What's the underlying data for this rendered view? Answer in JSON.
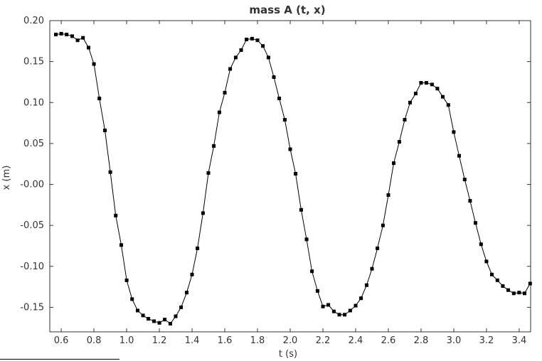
{
  "chart_data": {
    "type": "line",
    "title": "mass A (t, x)",
    "xlabel": "t (s)",
    "ylabel": "x (m)",
    "xlim": [
      0.53,
      3.47
    ],
    "ylim": [
      -0.18,
      0.2
    ],
    "x_ticks": [
      0.6,
      0.8,
      1.0,
      1.2,
      1.4,
      1.6,
      1.8,
      2.0,
      2.2,
      2.4,
      2.6,
      2.8,
      3.0,
      3.2,
      3.4
    ],
    "x_tick_labels": [
      "0.6",
      "0.8",
      "1.0",
      "1.2",
      "1.4",
      "1.6",
      "1.8",
      "2.0",
      "2.2",
      "2.4",
      "2.6",
      "2.8",
      "3.0",
      "3.2",
      "3.4"
    ],
    "y_ticks": [
      0.2,
      0.15,
      0.1,
      0.05,
      0.0,
      -0.05,
      -0.1,
      -0.15
    ],
    "y_tick_labels": [
      "0.20",
      "0.15",
      "0.10",
      "0.05",
      "-0.00",
      "-0.05",
      "-0.10",
      "-0.15"
    ],
    "grid": false,
    "colors": {
      "line": "#000000",
      "marker": "#000000",
      "axis": "#333333"
    },
    "series": [
      {
        "marker": "square",
        "x": [
          0.567,
          0.6,
          0.633,
          0.667,
          0.7,
          0.733,
          0.767,
          0.8,
          0.833,
          0.867,
          0.9,
          0.933,
          0.967,
          1.0,
          1.033,
          1.067,
          1.1,
          1.133,
          1.167,
          1.2,
          1.233,
          1.267,
          1.3,
          1.333,
          1.367,
          1.4,
          1.433,
          1.467,
          1.5,
          1.533,
          1.567,
          1.6,
          1.633,
          1.667,
          1.7,
          1.733,
          1.767,
          1.8,
          1.833,
          1.867,
          1.9,
          1.933,
          1.967,
          2.0,
          2.033,
          2.067,
          2.1,
          2.133,
          2.167,
          2.2,
          2.233,
          2.267,
          2.3,
          2.333,
          2.367,
          2.4,
          2.433,
          2.467,
          2.5,
          2.533,
          2.567,
          2.6,
          2.633,
          2.667,
          2.7,
          2.733,
          2.767,
          2.8,
          2.833,
          2.867,
          2.9,
          2.933,
          2.967,
          3.0,
          3.033,
          3.067,
          3.1,
          3.133,
          3.167,
          3.2,
          3.233,
          3.267,
          3.3,
          3.333,
          3.367,
          3.4,
          3.433,
          3.467
        ],
        "y": [
          0.183,
          0.184,
          0.183,
          0.181,
          0.176,
          0.179,
          0.167,
          0.147,
          0.105,
          0.066,
          0.015,
          -0.038,
          -0.074,
          -0.117,
          -0.14,
          -0.154,
          -0.16,
          -0.164,
          -0.167,
          -0.169,
          -0.165,
          -0.17,
          -0.161,
          -0.15,
          -0.132,
          -0.11,
          -0.078,
          -0.035,
          0.014,
          0.047,
          0.088,
          0.112,
          0.141,
          0.155,
          0.164,
          0.177,
          0.178,
          0.176,
          0.169,
          0.155,
          0.131,
          0.105,
          0.079,
          0.043,
          0.013,
          -0.031,
          -0.067,
          -0.106,
          -0.13,
          -0.149,
          -0.147,
          -0.155,
          -0.159,
          -0.159,
          -0.154,
          -0.148,
          -0.139,
          -0.123,
          -0.103,
          -0.078,
          -0.05,
          -0.013,
          0.026,
          0.052,
          0.079,
          0.1,
          0.111,
          0.124,
          0.124,
          0.122,
          0.117,
          0.107,
          0.097,
          0.064,
          0.035,
          0.006,
          -0.02,
          -0.047,
          -0.073,
          -0.094,
          -0.11,
          -0.117,
          -0.124,
          -0.129,
          -0.133,
          -0.132,
          -0.133,
          -0.121
        ]
      }
    ]
  }
}
